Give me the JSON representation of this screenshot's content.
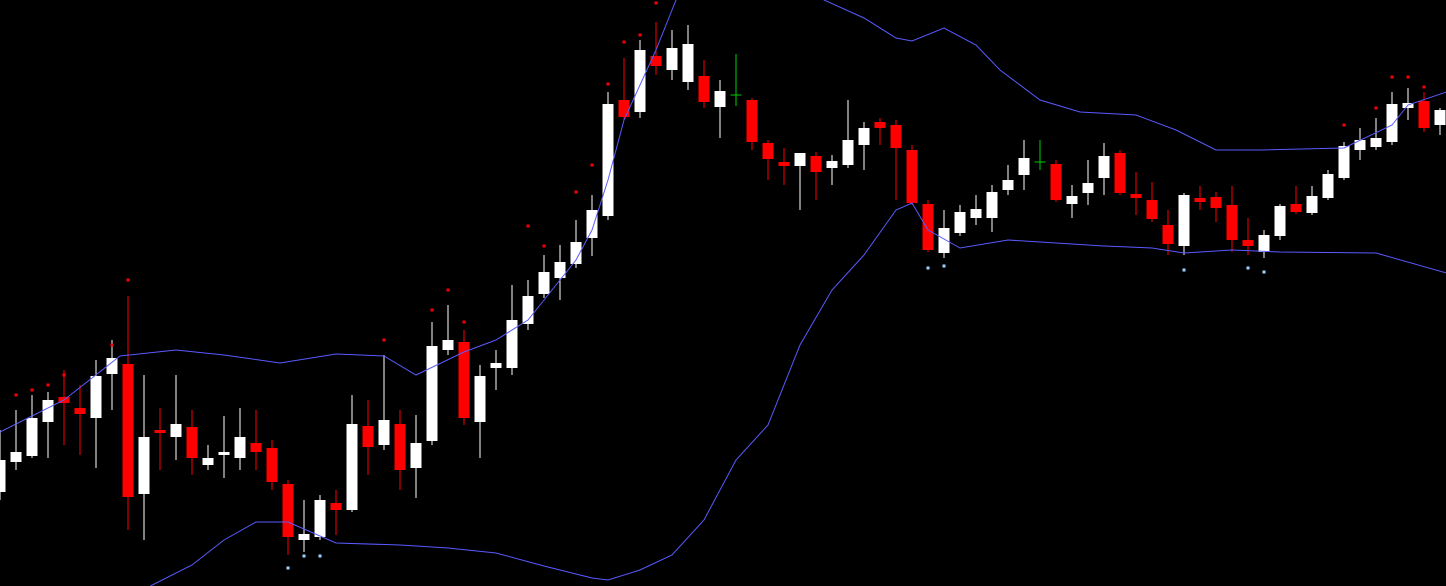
{
  "chart_data": {
    "type": "candlestick",
    "background": "#000000",
    "up_color": "#ffffff",
    "down_color": "#ff0000",
    "doji_color": "#00cc00",
    "xlim": [
      0,
      90.375
    ],
    "ylim": [
      0,
      586
    ],
    "categories": [
      null,
      null,
      null,
      null,
      null,
      null,
      null,
      null,
      null,
      null,
      null,
      null,
      null,
      null,
      null,
      null,
      null,
      null,
      null,
      null,
      null,
      null,
      null,
      null,
      null,
      null,
      null,
      null,
      null,
      null,
      null,
      null,
      null,
      null,
      null,
      null,
      null,
      null,
      null,
      null,
      null,
      null,
      null,
      null,
      null,
      null,
      null,
      null,
      null,
      null,
      null,
      null,
      null,
      null,
      null,
      null,
      null,
      null,
      null,
      null,
      null,
      null,
      null,
      null,
      null,
      null,
      null,
      null,
      null,
      null,
      null,
      null,
      null,
      null,
      null,
      null,
      null,
      null,
      null,
      null,
      null,
      null,
      null,
      null,
      null,
      null,
      null,
      null,
      null,
      null,
      null
    ],
    "open": [
      94,
      124,
      130,
      164,
      189,
      178,
      168,
      212,
      222,
      92,
      156,
      149,
      159,
      121,
      131,
      128,
      143,
      138,
      102,
      46,
      49,
      83,
      76,
      160,
      141,
      162,
      118,
      145,
      236,
      244,
      164,
      218,
      218,
      262,
      292,
      308,
      322,
      348,
      370,
      486,
      474,
      530,
      516,
      504,
      510,
      479,
      491,
      486,
      443,
      424,
      420,
      430,
      418,
      421,
      441,
      464,
      461,
      436,
      382,
      333,
      353,
      368,
      368,
      396,
      411,
      424,
      422,
      382,
      393,
      408,
      433,
      392,
      386,
      361,
      340,
      388,
      389,
      381,
      346,
      334,
      350,
      382,
      373,
      388,
      408,
      436,
      439,
      444,
      478,
      485,
      461
    ],
    "high": [
      156,
      176,
      191,
      194,
      216,
      201,
      226,
      246,
      290,
      211,
      178,
      211,
      176,
      141,
      170,
      178,
      176,
      146,
      106,
      86,
      91,
      96,
      191,
      186,
      231,
      176,
      171,
      264,
      281,
      256,
      221,
      236,
      301,
      306,
      331,
      341,
      366,
      391,
      494,
      528,
      546,
      564,
      556,
      561,
      526,
      506,
      532,
      488,
      446,
      438,
      433,
      434,
      431,
      486,
      464,
      468,
      466,
      441,
      386,
      376,
      381,
      391,
      401,
      421,
      446,
      446,
      426,
      401,
      426,
      443,
      436,
      414,
      404,
      376,
      393,
      400,
      394,
      400,
      368,
      356,
      382,
      400,
      400,
      416,
      444,
      458,
      468,
      494,
      498,
      494,
      478
    ],
    "low": [
      86,
      116,
      128,
      128,
      141,
      131,
      118,
      176,
      56,
      46,
      116,
      126,
      111,
      116,
      108,
      116,
      116,
      96,
      31,
      34,
      46,
      51,
      74,
      111,
      136,
      96,
      88,
      141,
      231,
      161,
      128,
      196,
      211,
      256,
      288,
      286,
      318,
      330,
      366,
      466,
      468,
      511,
      506,
      496,
      478,
      448,
      480,
      436,
      406,
      401,
      376,
      386,
      401,
      418,
      416,
      441,
      386,
      381,
      334,
      328,
      350,
      361,
      354,
      391,
      396,
      416,
      384,
      368,
      381,
      391,
      391,
      371,
      364,
      331,
      331,
      376,
      364,
      334,
      331,
      328,
      346,
      372,
      371,
      386,
      406,
      426,
      436,
      441,
      466,
      454,
      451
    ],
    "close": [
      126,
      134,
      168,
      186,
      183,
      172,
      210,
      228,
      89,
      149,
      153,
      162,
      128,
      128,
      134,
      149,
      134,
      104,
      49,
      52,
      86,
      76,
      162,
      139,
      166,
      116,
      143,
      240,
      246,
      168,
      210,
      223,
      266,
      290,
      314,
      324,
      344,
      376,
      482,
      469,
      536,
      520,
      538,
      542,
      484,
      495,
      491,
      444,
      427,
      420,
      433,
      414,
      425,
      446,
      458,
      458,
      438,
      383,
      336,
      358,
      374,
      377,
      394,
      406,
      428,
      424,
      386,
      390,
      403,
      430,
      393,
      388,
      367,
      342,
      391,
      384,
      378,
      346,
      340,
      351,
      380,
      374,
      390,
      412,
      440,
      446,
      448,
      482,
      483,
      458,
      476
    ],
    "bands": [
      {
        "color": "#5a5aff",
        "x": [
          0,
          4,
          7.5,
          11,
          14,
          17.5,
          21,
          24,
          26,
          29,
          31,
          33,
          34,
          36,
          37,
          38,
          39,
          40,
          41,
          42,
          42.5,
          51,
          51.5,
          54,
          56,
          57,
          59,
          61,
          62.5,
          65,
          67.5,
          71,
          73.5,
          76,
          78.75,
          84,
          87,
          88,
          90.4
        ],
        "values": [
          154,
          186,
          230,
          236,
          231,
          223,
          232,
          230,
          211,
          234,
          246,
          266,
          286,
          326,
          356,
          406,
          466,
          501,
          536,
          576,
          596,
          596,
          586,
          568,
          548,
          545,
          558,
          541,
          516,
          486,
          474,
          471,
          456,
          436,
          436,
          438,
          461,
          481,
          494
        ]
      },
      {
        "color": "#5a5aff",
        "x": [
          9.4,
          12,
          14,
          16,
          18,
          21,
          25,
          28,
          31,
          34,
          37,
          38,
          40,
          42,
          44,
          46,
          48,
          50,
          52,
          54,
          56,
          57,
          58,
          60,
          63,
          66,
          69,
          72,
          74,
          77,
          80,
          86,
          90.4
        ],
        "values": [
          0,
          21,
          46,
          64,
          64,
          43,
          41,
          38,
          33,
          20,
          8,
          6,
          16,
          31,
          66,
          126,
          161,
          241,
          296,
          331,
          376,
          383,
          356,
          338,
          346,
          343,
          340,
          338,
          333,
          336,
          334,
          333,
          313
        ]
      }
    ],
    "dots": [
      {
        "color": "#ff0000",
        "x": [
          1,
          2,
          3,
          4,
          7,
          8,
          24,
          27,
          28,
          29,
          33,
          34,
          36,
          37,
          38,
          39,
          40,
          41,
          84,
          86,
          87,
          88,
          89
        ],
        "values": [
          191,
          196,
          201,
          211,
          241,
          306,
          246,
          276,
          296,
          264,
          360,
          340,
          394,
          421,
          502,
          544,
          551,
          583,
          461,
          478,
          509,
          509,
          499
        ]
      },
      {
        "color": "#9fd3ff",
        "x": [
          18,
          19,
          20,
          58,
          59,
          74,
          78,
          79
        ],
        "values": [
          18,
          30,
          30,
          318,
          320,
          316,
          318,
          314
        ]
      }
    ]
  }
}
